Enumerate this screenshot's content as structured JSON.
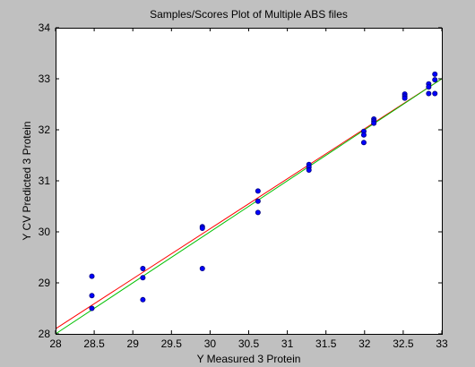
{
  "chart_data": {
    "type": "scatter",
    "title": "Samples/Scores Plot of Multiple ABS files",
    "xlabel": "Y Measured 3 Protein",
    "ylabel": "Y CV Predicted 3 Protein",
    "xlim": [
      28,
      33
    ],
    "ylim": [
      28,
      34
    ],
    "xticks": [
      "28",
      "28.5",
      "29",
      "29.5",
      "30",
      "30.5",
      "31",
      "31.5",
      "32",
      "32.5",
      "33"
    ],
    "yticks": [
      "28",
      "29",
      "30",
      "31",
      "32",
      "33",
      "34"
    ],
    "grid": false,
    "legend": "none",
    "points": [
      {
        "x": 28.47,
        "y": 29.13
      },
      {
        "x": 28.47,
        "y": 28.75
      },
      {
        "x": 28.47,
        "y": 28.5
      },
      {
        "x": 29.13,
        "y": 29.28
      },
      {
        "x": 29.13,
        "y": 29.1
      },
      {
        "x": 29.13,
        "y": 28.67
      },
      {
        "x": 29.9,
        "y": 30.1
      },
      {
        "x": 29.9,
        "y": 30.07
      },
      {
        "x": 29.9,
        "y": 29.28
      },
      {
        "x": 30.62,
        "y": 30.8
      },
      {
        "x": 30.62,
        "y": 30.6
      },
      {
        "x": 30.62,
        "y": 30.38
      },
      {
        "x": 31.28,
        "y": 31.32
      },
      {
        "x": 31.28,
        "y": 31.27
      },
      {
        "x": 31.28,
        "y": 31.21
      },
      {
        "x": 31.99,
        "y": 31.97
      },
      {
        "x": 31.99,
        "y": 31.9
      },
      {
        "x": 31.99,
        "y": 31.75
      },
      {
        "x": 32.12,
        "y": 32.21
      },
      {
        "x": 32.12,
        "y": 32.17
      },
      {
        "x": 32.12,
        "y": 32.13
      },
      {
        "x": 32.52,
        "y": 32.7
      },
      {
        "x": 32.52,
        "y": 32.66
      },
      {
        "x": 32.52,
        "y": 32.62
      },
      {
        "x": 32.83,
        "y": 32.9
      },
      {
        "x": 32.83,
        "y": 32.84
      },
      {
        "x": 32.83,
        "y": 32.71
      },
      {
        "x": 32.91,
        "y": 33.09
      },
      {
        "x": 32.91,
        "y": 32.98
      },
      {
        "x": 32.91,
        "y": 32.71
      }
    ],
    "lines": [
      {
        "color": "#ff0000",
        "x": [
          28,
          33
        ],
        "y": [
          28.1,
          33.0
        ]
      },
      {
        "color": "#00c000",
        "x": [
          28,
          33
        ],
        "y": [
          28.0,
          33.0
        ]
      }
    ],
    "marker_color": "#0000ff",
    "marker_edge": "#000080",
    "background": "#c0c0c0",
    "axes_background": "#ffffff"
  }
}
